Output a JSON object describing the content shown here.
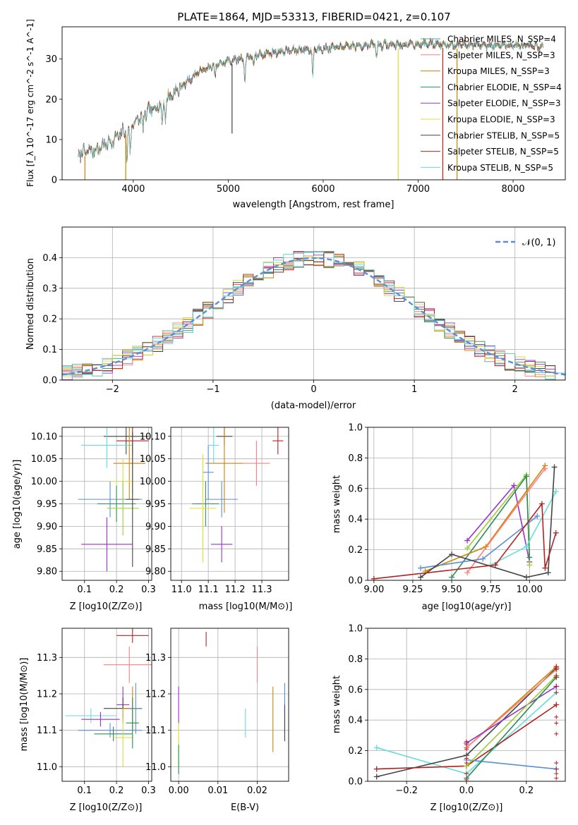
{
  "figure": {
    "title": "PLATE=1864, MJD=53313, FIBERID=0421, z=0.107"
  },
  "labels": {
    "spec_xlabel": "wavelength [Angstrom, rest frame]",
    "spec_ylabel": "Flux [f_λ 10^-17 erg cm^-2 s^-1 A^-1]",
    "hist_xlabel": "(data-model)/error",
    "hist_ylabel": "Normed distribution",
    "age_ylabel": "age  [log10(age/yr)]",
    "z_xlabel": "Z [log10(Z/Z⊙)]",
    "mass_xlabel": "mass [log10(M/M⊙)]",
    "mw_ylabel": "mass weight",
    "age_xlabel": "age  [log10(age/yr)]",
    "mass_ylabel": "mass [log10(M/M⊙)]",
    "ebv_xlabel": "E(B-V)"
  },
  "chart_data": [
    {
      "type": "line",
      "panel": "spectrum",
      "xlabel": "wavelength [Angstrom, rest frame]",
      "ylabel": "Flux [f_λ 10^-17 erg cm^-2 s^-1 A^-1]",
      "xlim": [
        3250,
        8550
      ],
      "ylim": [
        0,
        38
      ],
      "xticks": [
        4000,
        5000,
        6000,
        7000,
        8000
      ],
      "yticks": [
        0,
        10,
        20,
        30
      ],
      "legend_position": "right",
      "series": [
        {
          "name": "Chabrier MILES, N_SSP=4",
          "color": "#5f9ea0"
        },
        {
          "name": "Salpeter MILES, N_SSP=3",
          "color": "#ff7f7f"
        },
        {
          "name": "Kroupa MILES, N_SSP=3",
          "color": "#cd8500"
        },
        {
          "name": "Chabrier ELODIE, N_SSP=4",
          "color": "#2e8b57"
        },
        {
          "name": "Salpeter ELODIE, N_SSP=3",
          "color": "#9932cc"
        },
        {
          "name": "Kroupa ELODIE, N_SSP=3",
          "color": "#dddd33"
        },
        {
          "name": "Chabrier STELIB, N_SSP=5",
          "color": "#444444"
        },
        {
          "name": "Salpeter STELIB, N_SSP=5",
          "color": "#b22222"
        },
        {
          "name": "Kroupa STELIB, N_SSP=5",
          "color": "#66dddd"
        }
      ],
      "continuum": [
        [
          3420,
          6.5
        ],
        [
          3600,
          7.5
        ],
        [
          3800,
          10
        ],
        [
          3950,
          13
        ],
        [
          4100,
          16
        ],
        [
          4300,
          19
        ],
        [
          4500,
          23
        ],
        [
          4700,
          27
        ],
        [
          5000,
          29.5
        ],
        [
          5300,
          31
        ],
        [
          5600,
          32
        ],
        [
          5900,
          32.5
        ],
        [
          6200,
          33
        ],
        [
          6500,
          33.5
        ],
        [
          6800,
          33.5
        ],
        [
          7100,
          33.8
        ],
        [
          7400,
          33.6
        ],
        [
          7700,
          33.5
        ],
        [
          8000,
          33.4
        ],
        [
          8300,
          33
        ]
      ],
      "absorption_features": [
        [
          3933,
          8
        ],
        [
          3968,
          7
        ],
        [
          4101,
          4
        ],
        [
          4304,
          6
        ],
        [
          4340,
          4
        ],
        [
          4861,
          3
        ],
        [
          5175,
          6
        ],
        [
          5270,
          3
        ],
        [
          5890,
          7
        ],
        [
          6563,
          3
        ]
      ],
      "drops": [
        {
          "x": 3490,
          "color": "#cd8500"
        },
        {
          "x": 3920,
          "color": "#cd8500"
        },
        {
          "x": 6790,
          "color": "#dddd33"
        },
        {
          "x": 7260,
          "color": "#b22222"
        },
        {
          "x": 7410,
          "color": "#cd8500"
        },
        {
          "x": 5040,
          "color": "#444444",
          "y0": 11.5
        }
      ]
    },
    {
      "type": "line",
      "panel": "residual_histogram",
      "xlabel": "(data-model)/error",
      "ylabel": "Normed distribution",
      "xlim": [
        -2.5,
        2.5
      ],
      "ylim": [
        0,
        0.5
      ],
      "xticks": [
        -2,
        -1,
        0,
        1,
        2
      ],
      "yticks": [
        0.0,
        0.1,
        0.2,
        0.3,
        0.4
      ],
      "grid": true,
      "legend_position": "top-right",
      "reference": {
        "name": "𝒩(0, 1)",
        "mean": 0,
        "sigma": 1,
        "color": "#5a8fd6"
      },
      "bin_width": 0.1,
      "hist_colors": [
        "#5f9ea0",
        "#ff7f7f",
        "#cd8500",
        "#2e8b57",
        "#9932cc",
        "#dddd33",
        "#444444",
        "#b22222",
        "#66dddd"
      ]
    },
    {
      "type": "scatter",
      "panel": "age_vs_Z",
      "xlabel": "Z [log10(Z/Z⊙)]",
      "ylabel": "age  [log10(age/yr)]",
      "xlim": [
        0.03,
        0.31
      ],
      "ylim": [
        9.78,
        10.12
      ],
      "xticks": [
        0.1,
        0.2,
        0.3
      ],
      "yticks": [
        9.8,
        9.85,
        9.9,
        9.95,
        10.0,
        10.05,
        10.1
      ],
      "grid": true,
      "points": [
        {
          "x": 0.23,
          "xerr": 0.07,
          "y": 10.1,
          "yerr": 0.04,
          "color": "#444444"
        },
        {
          "x": 0.25,
          "xerr": 0.05,
          "y": 10.09,
          "yerr": 0.03,
          "color": "#b22222"
        },
        {
          "x": 0.17,
          "xerr": 0.08,
          "y": 10.08,
          "yerr": 0.05,
          "color": "#66dddd"
        },
        {
          "x": 0.25,
          "xerr": 0.04,
          "y": 10.04,
          "yerr": 0.07,
          "color": "#ff7f7f"
        },
        {
          "x": 0.24,
          "xerr": 0.05,
          "y": 10.04,
          "yerr": 0.08,
          "color": "#cd8500"
        },
        {
          "x": 0.22,
          "xerr": 0.04,
          "y": 10.0,
          "yerr": 0.05,
          "color": "#dddd33"
        },
        {
          "x": 0.18,
          "xerr": 0.1,
          "y": 9.96,
          "yerr": 0.04,
          "color": "#5a8fd6"
        },
        {
          "x": 0.2,
          "xerr": 0.06,
          "y": 9.95,
          "yerr": 0.04,
          "color": "#2e8b57"
        },
        {
          "x": 0.22,
          "xerr": 0.05,
          "y": 9.94,
          "yerr": 0.06,
          "color": "#9acd32"
        },
        {
          "x": 0.17,
          "xerr": 0.08,
          "y": 9.86,
          "yerr": 0.06,
          "color": "#9932cc"
        },
        {
          "x": 0.25,
          "xerr": 0.02,
          "y": 9.96,
          "yerr": 0.15,
          "color": "#444444"
        }
      ]
    },
    {
      "type": "scatter",
      "panel": "age_vs_mass",
      "xlabel": "mass [log10(M/M⊙)]",
      "ylabel": "",
      "xlim": [
        10.96,
        11.4
      ],
      "ylim": [
        9.78,
        10.12
      ],
      "xticks": [
        11.0,
        11.1,
        11.2,
        11.3
      ],
      "yticks": [
        9.8,
        9.85,
        9.9,
        9.95,
        10.0,
        10.05,
        10.1
      ],
      "grid": true,
      "points": [
        {
          "x": 11.16,
          "xerr": 0.03,
          "y": 10.1,
          "yerr": 0.02,
          "color": "#444444"
        },
        {
          "x": 11.36,
          "xerr": 0.02,
          "y": 10.09,
          "yerr": 0.03,
          "color": "#b22222"
        },
        {
          "x": 11.12,
          "xerr": 0.02,
          "y": 10.08,
          "yerr": 0.04,
          "color": "#66dddd"
        },
        {
          "x": 11.28,
          "xerr": 0.05,
          "y": 10.04,
          "yerr": 0.05,
          "color": "#ff7f7f"
        },
        {
          "x": 11.16,
          "xerr": 0.07,
          "y": 10.04,
          "yerr": 0.11,
          "color": "#cd8500"
        },
        {
          "x": 11.1,
          "xerr": 0.02,
          "y": 10.02,
          "yerr": 0.06,
          "color": "#5a8fd6"
        },
        {
          "x": 11.15,
          "xerr": 0.06,
          "y": 9.96,
          "yerr": 0.04,
          "color": "#5a8fd6"
        },
        {
          "x": 11.09,
          "xerr": 0.05,
          "y": 9.95,
          "yerr": 0.05,
          "color": "#2e8b57"
        },
        {
          "x": 11.08,
          "xerr": 0.05,
          "y": 9.94,
          "yerr": 0.12,
          "color": "#dddd33"
        },
        {
          "x": 11.15,
          "xerr": 0.04,
          "y": 9.86,
          "yerr": 0.04,
          "color": "#9932cc"
        }
      ]
    },
    {
      "type": "line",
      "panel": "mass_weight_vs_age",
      "xlabel": "age  [log10(age/yr)]",
      "ylabel": "mass weight",
      "xlim": [
        8.96,
        10.23
      ],
      "ylim": [
        0,
        1
      ],
      "xticks": [
        9.0,
        9.25,
        9.5,
        9.75,
        10.0
      ],
      "yticks": [
        0.0,
        0.2,
        0.4,
        0.6,
        0.8,
        1.0
      ],
      "grid": true,
      "series": [
        {
          "color": "#9932cc",
          "x": [
            9.6,
            9.9,
            10.0
          ],
          "y": [
            0.26,
            0.62,
            0.12
          ]
        },
        {
          "color": "#9acd32",
          "x": [
            9.6,
            9.98,
            10.0
          ],
          "y": [
            0.21,
            0.69,
            0.1
          ]
        },
        {
          "color": "#2e8b57",
          "x": [
            9.5,
            9.98,
            10.0
          ],
          "y": [
            0.02,
            0.68,
            0.15
          ]
        },
        {
          "color": "#cd8500",
          "x": [
            9.33,
            9.72,
            10.1
          ],
          "y": [
            0.06,
            0.22,
            0.75
          ]
        },
        {
          "color": "#ff7f7f",
          "x": [
            9.6,
            10.1
          ],
          "y": [
            0.05,
            0.73
          ]
        },
        {
          "color": "#5a8fd6",
          "x": [
            9.3,
            9.7,
            10.05
          ],
          "y": [
            0.08,
            0.14,
            0.42
          ]
        },
        {
          "color": "#66dddd",
          "x": [
            9.75,
            9.98,
            10.17
          ],
          "y": [
            0.1,
            0.22,
            0.58
          ]
        },
        {
          "color": "#444444",
          "x": [
            9.3,
            9.5,
            9.98,
            10.12,
            10.16
          ],
          "y": [
            0.02,
            0.17,
            0.02,
            0.05,
            0.74
          ]
        },
        {
          "color": "#b22222",
          "x": [
            9.0,
            9.78,
            10.08,
            10.1,
            10.17
          ],
          "y": [
            0.01,
            0.1,
            0.5,
            0.08,
            0.31
          ]
        }
      ]
    },
    {
      "type": "scatter",
      "panel": "mass_vs_Z",
      "xlabel": "Z [log10(Z/Z⊙)]",
      "ylabel": "mass [log10(M/M⊙)]",
      "xlim": [
        0.03,
        0.31
      ],
      "ylim": [
        10.96,
        11.38
      ],
      "xticks": [
        0.1,
        0.2,
        0.3
      ],
      "yticks": [
        11.0,
        11.1,
        11.2,
        11.3
      ],
      "grid": true,
      "points": [
        {
          "x": 0.25,
          "xerr": 0.05,
          "y": 11.36,
          "yerr": 0.02,
          "color": "#b22222"
        },
        {
          "x": 0.24,
          "xerr": 0.08,
          "y": 11.28,
          "yerr": 0.05,
          "color": "#ff7f7f"
        },
        {
          "x": 0.22,
          "xerr": 0.02,
          "y": 11.17,
          "yerr": 0.05,
          "color": "#9932cc"
        },
        {
          "x": 0.22,
          "xerr": 0.06,
          "y": 11.16,
          "yerr": 0.03,
          "color": "#444444"
        },
        {
          "x": 0.25,
          "xerr": 0.03,
          "y": 11.16,
          "yerr": 0.06,
          "color": "#cd8500"
        },
        {
          "x": 0.26,
          "xerr": 0.02,
          "y": 11.16,
          "yerr": 0.07,
          "color": "#5a8fd6"
        },
        {
          "x": 0.12,
          "xerr": 0.08,
          "y": 11.14,
          "yerr": 0.02,
          "color": "#66dddd"
        },
        {
          "x": 0.15,
          "xerr": 0.06,
          "y": 11.13,
          "yerr": 0.02,
          "color": "#9932cc"
        },
        {
          "x": 0.18,
          "xerr": 0.1,
          "y": 11.1,
          "yerr": 0.02,
          "color": "#5a8fd6"
        },
        {
          "x": 0.19,
          "xerr": 0.06,
          "y": 11.09,
          "yerr": 0.02,
          "color": "#2e8b57"
        },
        {
          "x": 0.22,
          "xerr": 0.03,
          "y": 11.08,
          "yerr": 0.08,
          "color": "#dddd33"
        },
        {
          "x": 0.25,
          "xerr": 0.02,
          "y": 11.12,
          "yerr": 0.07,
          "color": "#2e8b57"
        }
      ]
    },
    {
      "type": "scatter",
      "panel": "mass_vs_EBV",
      "xlabel": "E(B-V)",
      "ylabel": "",
      "xlim": [
        -0.002,
        0.028
      ],
      "ylim": [
        10.96,
        11.38
      ],
      "xticks": [
        0.0,
        0.01,
        0.02
      ],
      "yticks": [
        11.0,
        11.1,
        11.2,
        11.3
      ],
      "grid": true,
      "points": [
        {
          "x": 0.007,
          "y": 11.35,
          "yerr": 0.02,
          "color": "#b22222"
        },
        {
          "x": 0.02,
          "y": 11.28,
          "yerr": 0.05,
          "color": "#ff7f7f"
        },
        {
          "x": 0.0,
          "y": 11.17,
          "yerr": 0.05,
          "color": "#9932cc"
        },
        {
          "x": 0.027,
          "y": 11.16,
          "yerr": 0.07,
          "color": "#5a8fd6"
        },
        {
          "x": 0.024,
          "y": 11.13,
          "yerr": 0.09,
          "color": "#cd8500"
        },
        {
          "x": 0.027,
          "y": 11.12,
          "yerr": 0.05,
          "color": "#444444"
        },
        {
          "x": 0.017,
          "y": 11.12,
          "yerr": 0.04,
          "color": "#66dddd"
        },
        {
          "x": 0.0,
          "y": 11.06,
          "yerr": 0.06,
          "color": "#dddd33"
        },
        {
          "x": 0.0,
          "y": 11.02,
          "yerr": 0.04,
          "color": "#2e8b57"
        }
      ]
    },
    {
      "type": "line",
      "panel": "mass_weight_vs_Z",
      "xlabel": "Z [log10(Z/Z⊙)]",
      "ylabel": "mass weight",
      "xlim": [
        -0.33,
        0.33
      ],
      "ylim": [
        0,
        1
      ],
      "xticks": [
        -0.2,
        0.0,
        0.2
      ],
      "yticks": [
        0.0,
        0.2,
        0.4,
        0.6,
        0.8,
        1.0
      ],
      "grid": true,
      "series": [
        {
          "color": "#66dddd",
          "x": [
            -0.3,
            0.0,
            0.3
          ],
          "y": [
            0.22,
            0.05,
            0.58
          ]
        },
        {
          "color": "#444444",
          "x": [
            -0.3,
            0.0,
            0.3
          ],
          "y": [
            0.03,
            0.17,
            0.74
          ]
        },
        {
          "color": "#b22222",
          "x": [
            -0.3,
            0.0,
            0.3
          ],
          "y": [
            0.08,
            0.1,
            0.5
          ]
        },
        {
          "color": "#5a8fd6",
          "x": [
            0.0,
            0.3
          ],
          "y": [
            0.14,
            0.08
          ]
        },
        {
          "color": "#cd8500",
          "x": [
            0.0,
            0.3
          ],
          "y": [
            0.22,
            0.75
          ]
        },
        {
          "color": "#ff7f7f",
          "x": [
            0.0,
            0.3
          ],
          "y": [
            0.22,
            0.73
          ]
        },
        {
          "color": "#9932cc",
          "x": [
            0.0,
            0.3
          ],
          "y": [
            0.25,
            0.62
          ]
        },
        {
          "color": "#9acd32",
          "x": [
            0.0,
            0.3
          ],
          "y": [
            0.1,
            0.69
          ]
        },
        {
          "color": "#2e8b57",
          "x": [
            0.0,
            0.3
          ],
          "y": [
            0.02,
            0.68
          ]
        }
      ],
      "markers_at_solar": [
        0.01,
        0.05,
        0.12,
        0.15,
        0.21,
        0.24,
        0.26
      ],
      "markers_at_max": [
        0.02,
        0.05,
        0.08,
        0.12,
        0.31,
        0.38,
        0.42,
        0.5,
        0.58,
        0.62,
        0.68,
        0.69,
        0.73,
        0.74,
        0.75
      ]
    }
  ]
}
